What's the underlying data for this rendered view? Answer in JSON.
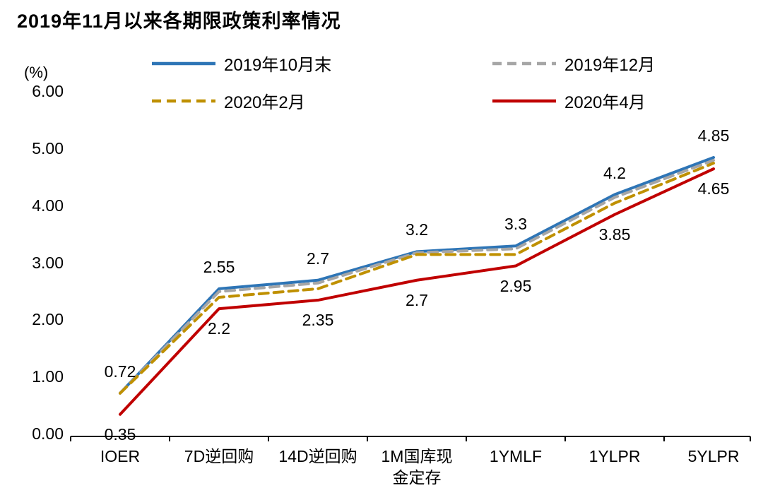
{
  "title": "2019年11月以来各期限政策利率情况",
  "chart_data": {
    "type": "line",
    "title": "2019年11月以来各期限政策利率情况",
    "xlabel": "",
    "ylabel": "(%)",
    "ylim": [
      0,
      6
    ],
    "grid": false,
    "legend_position": "top",
    "yticks": [
      "6.00",
      "5.00",
      "4.00",
      "3.00",
      "2.00",
      "1.00",
      "0.00"
    ],
    "ytick_values": [
      6,
      5,
      4,
      3,
      2,
      1,
      0
    ],
    "categories": [
      "IOER",
      "7D逆回购",
      "14D逆回购",
      "1M国库现\n金定存",
      "1YMLF",
      "1YLPR",
      "5YLPR"
    ],
    "series": [
      {
        "name": "2019年10月末",
        "color": "#2E75B6",
        "dash": null,
        "values": [
          0.72,
          2.55,
          2.7,
          3.2,
          3.3,
          4.2,
          4.85
        ]
      },
      {
        "name": "2019年12月",
        "color": "#A6A6A6",
        "dash": "13,8",
        "values": [
          0.72,
          2.5,
          2.65,
          3.18,
          3.25,
          4.15,
          4.8
        ]
      },
      {
        "name": "2020年2月",
        "color": "#BF9000",
        "dash": "13,8",
        "values": [
          0.72,
          2.4,
          2.55,
          3.15,
          3.15,
          4.05,
          4.75
        ]
      },
      {
        "name": "2020年4月",
        "color": "#C00000",
        "dash": null,
        "values": [
          0.35,
          2.2,
          2.35,
          2.7,
          2.95,
          3.85,
          4.65
        ]
      }
    ],
    "point_labels": [
      {
        "series": 0,
        "cat": 0,
        "text": "0.72",
        "pos": "above"
      },
      {
        "series": 0,
        "cat": 1,
        "text": "2.55",
        "pos": "above"
      },
      {
        "series": 0,
        "cat": 2,
        "text": "2.7",
        "pos": "above"
      },
      {
        "series": 0,
        "cat": 3,
        "text": "3.2",
        "pos": "above"
      },
      {
        "series": 0,
        "cat": 4,
        "text": "3.3",
        "pos": "above"
      },
      {
        "series": 0,
        "cat": 5,
        "text": "4.2",
        "pos": "above"
      },
      {
        "series": 0,
        "cat": 6,
        "text": "4.85",
        "pos": "above"
      },
      {
        "series": 3,
        "cat": 0,
        "text": "0.35",
        "pos": "below"
      },
      {
        "series": 3,
        "cat": 1,
        "text": "2.2",
        "pos": "below"
      },
      {
        "series": 3,
        "cat": 2,
        "text": "2.35",
        "pos": "below"
      },
      {
        "series": 3,
        "cat": 3,
        "text": "2.7",
        "pos": "below"
      },
      {
        "series": 3,
        "cat": 4,
        "text": "2.95",
        "pos": "below"
      },
      {
        "series": 3,
        "cat": 5,
        "text": "3.85",
        "pos": "below"
      },
      {
        "series": 3,
        "cat": 6,
        "text": "4.65",
        "pos": "below"
      }
    ]
  }
}
